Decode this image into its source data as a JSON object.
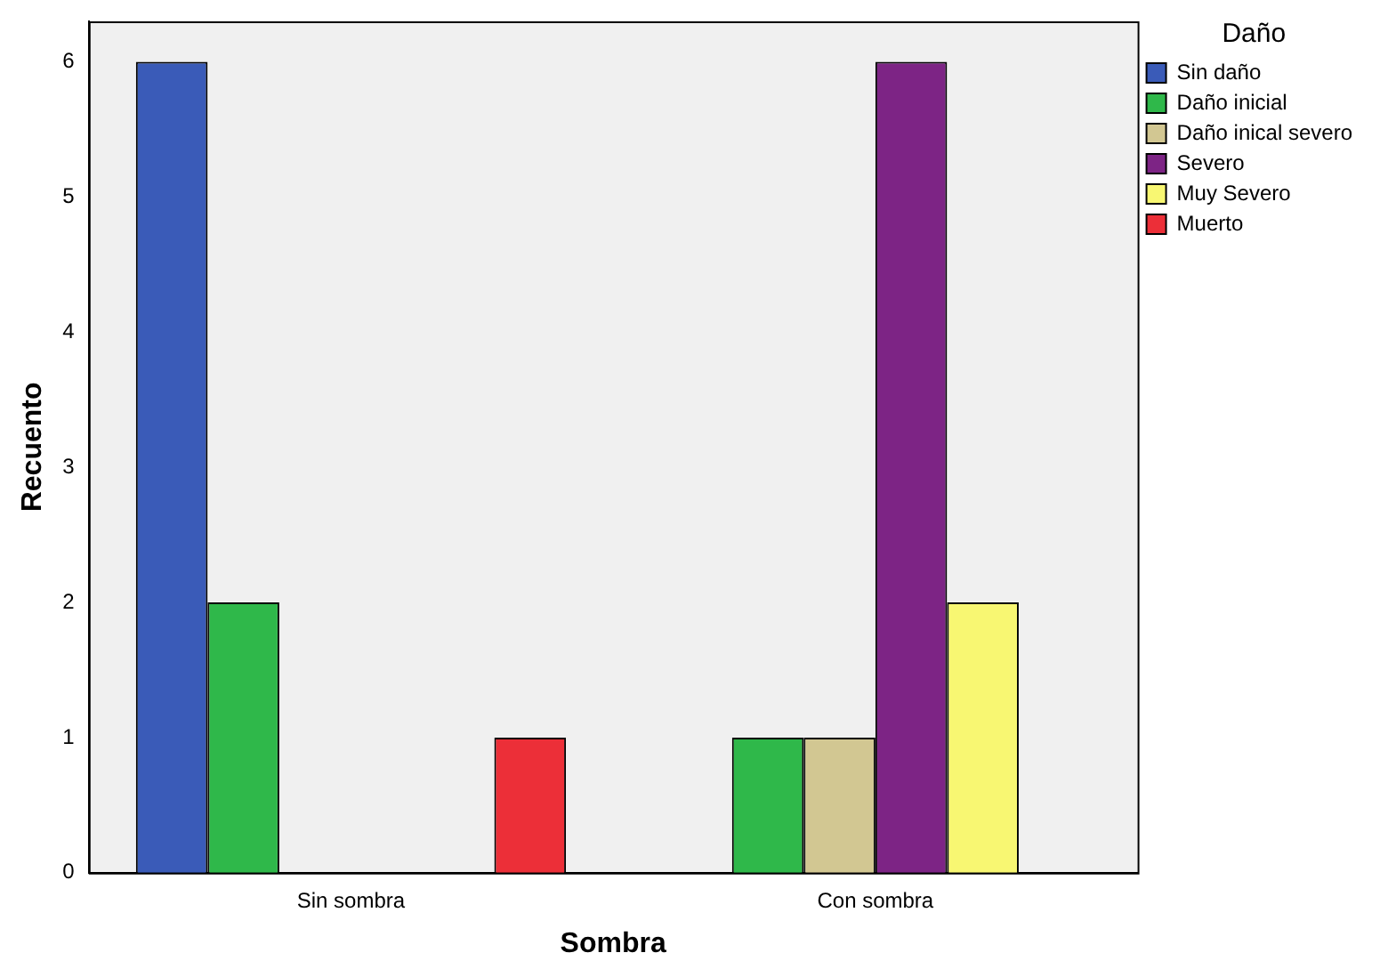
{
  "chart_data": {
    "type": "bar",
    "xlabel": "Sombra",
    "ylabel": "Recuento",
    "legend_title": "Daño",
    "categories": [
      "Sin sombra",
      "Con sombra"
    ],
    "series": [
      {
        "name": "Sin daño",
        "color": "#3a5bb8",
        "values": [
          6,
          0
        ]
      },
      {
        "name": "Daño inicial",
        "color": "#2fb84a",
        "values": [
          2,
          1
        ]
      },
      {
        "name": "Daño inical severo",
        "color": "#d2c792",
        "values": [
          0,
          1
        ]
      },
      {
        "name": "Severo",
        "color": "#7d2485",
        "values": [
          0,
          6
        ]
      },
      {
        "name": "Muy Severo",
        "color": "#f8f772",
        "values": [
          0,
          2
        ]
      },
      {
        "name": "Muerto",
        "color": "#ec2f38",
        "values": [
          1,
          0
        ]
      }
    ],
    "ylim": [
      0,
      6.3
    ],
    "yticks": [
      0,
      1,
      2,
      3,
      4,
      5,
      6
    ],
    "grid": false,
    "legend": "right"
  }
}
